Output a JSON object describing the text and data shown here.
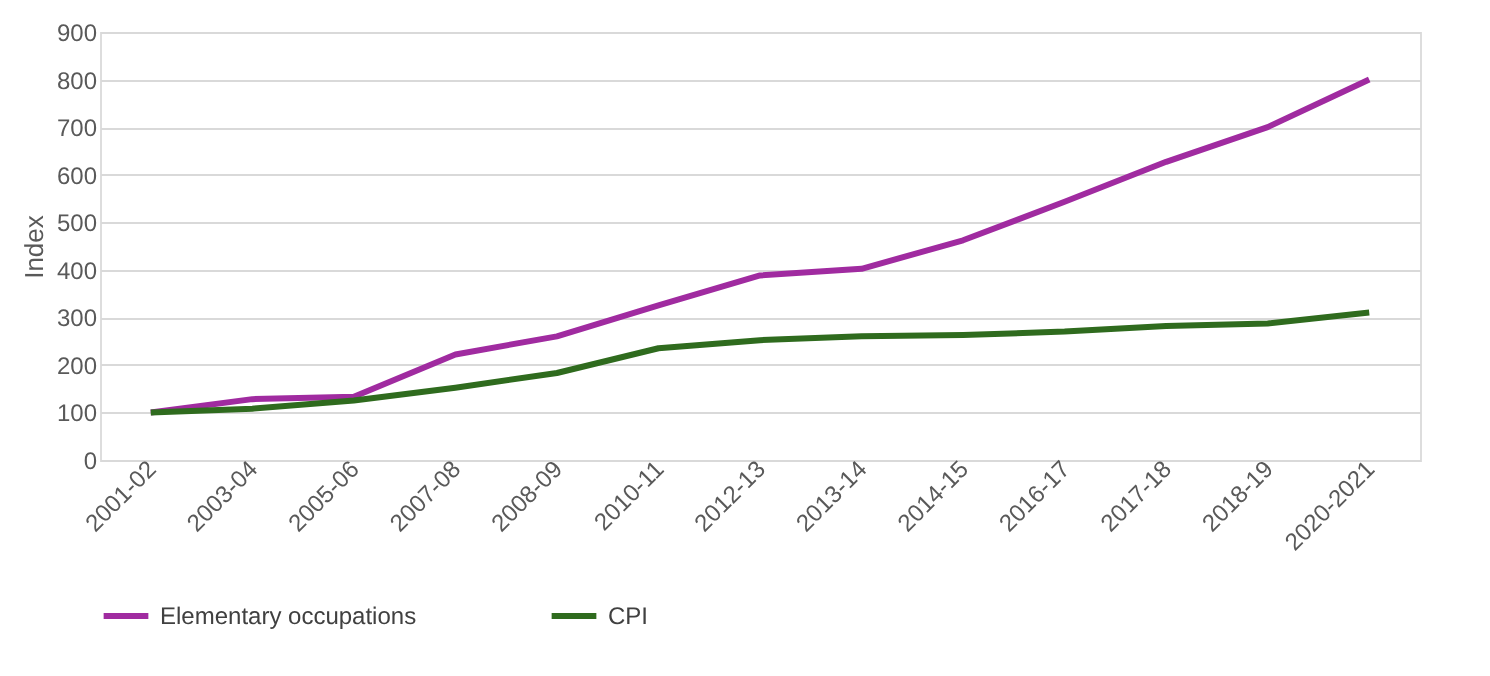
{
  "chart_data": {
    "type": "line",
    "ylabel": "Index",
    "categories": [
      "2001-02",
      "2003-04",
      "2005-06",
      "2007-08",
      "2008-09",
      "2010-11",
      "2012-13",
      "2013-14",
      "2014-15",
      "2016-17",
      "2017-18",
      "2018-19",
      "2020-2021"
    ],
    "series": [
      {
        "name": "Elementary occupations",
        "color": "#a02ba0",
        "values": [
          100,
          128,
          133,
          222,
          260,
          325,
          388,
          402,
          462,
          543,
          627,
          700,
          800
        ]
      },
      {
        "name": "CPI",
        "color": "#2f6b1e",
        "values": [
          100,
          108,
          125,
          152,
          183,
          235,
          252,
          260,
          263,
          270,
          282,
          287,
          310
        ]
      }
    ],
    "ylim": [
      0,
      900
    ],
    "yticks": [
      0,
      100,
      200,
      300,
      400,
      500,
      600,
      700,
      800,
      900
    ],
    "grid": "y",
    "legend": "bottom",
    "marker": "none",
    "line_style": "solid"
  }
}
